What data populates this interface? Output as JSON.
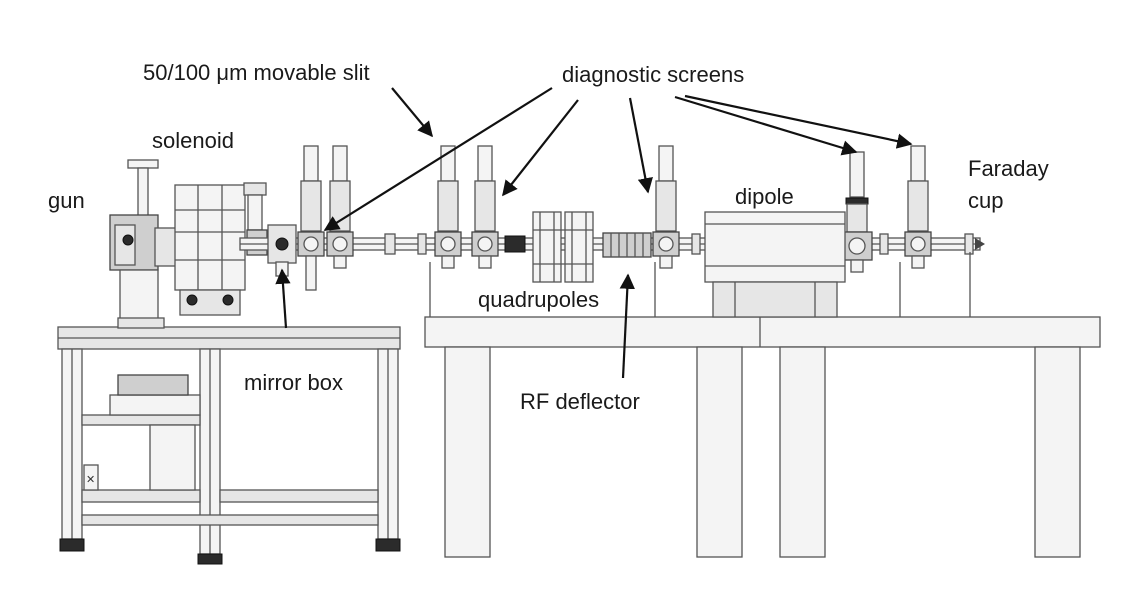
{
  "labels": {
    "slit": "50/100 μm movable slit",
    "diagnostic_screens": "diagnostic screens",
    "solenoid": "solenoid",
    "gun": "gun",
    "faraday_line1": "Faraday",
    "faraday_line2": "cup",
    "dipole": "dipole",
    "quadrupoles": "quadrupoles",
    "mirror_box": "mirror box",
    "rf_deflector": "RF deflector"
  }
}
